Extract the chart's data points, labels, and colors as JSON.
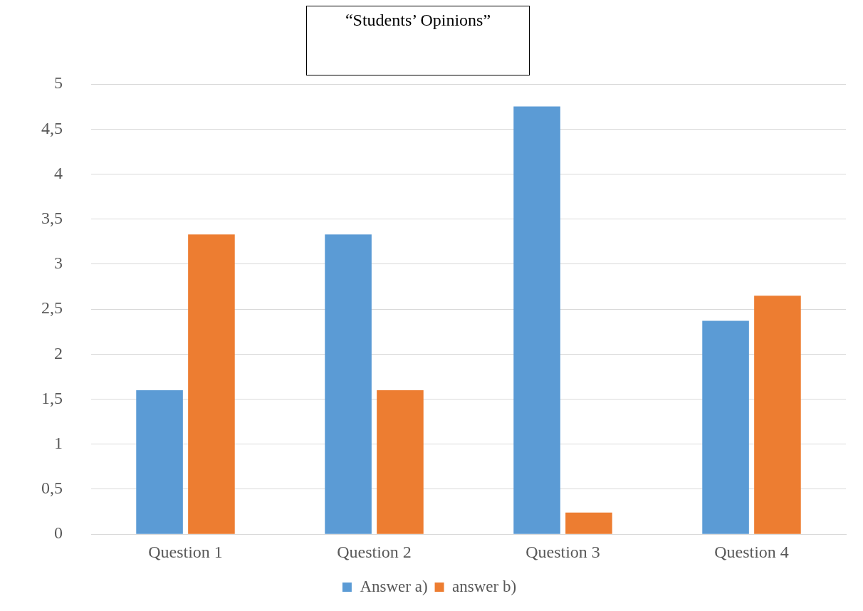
{
  "chart_data": {
    "type": "bar",
    "title": "“Students’ Opinions”",
    "categories": [
      "Question 1",
      "Question 2",
      "Question 3",
      "Question 4"
    ],
    "series": [
      {
        "name": "Answer a)",
        "color": "#5b9bd5",
        "values": [
          1.6,
          3.33,
          4.75,
          2.37
        ]
      },
      {
        "name": "answer b)",
        "color": "#ed7d31",
        "values": [
          3.33,
          1.6,
          0.24,
          2.65
        ]
      }
    ],
    "ylim": [
      0,
      5
    ],
    "yticks": [
      0,
      {
        "value": 0.5,
        "label": "0,5"
      },
      1,
      {
        "value": 1.5,
        "label": "1,5"
      },
      2,
      {
        "value": 2.5,
        "label": "2,5"
      },
      3,
      {
        "value": 3.5,
        "label": "3,5"
      },
      4,
      {
        "value": 4.5,
        "label": "4,5"
      },
      5
    ],
    "grid": "y",
    "legend": "bottom"
  }
}
